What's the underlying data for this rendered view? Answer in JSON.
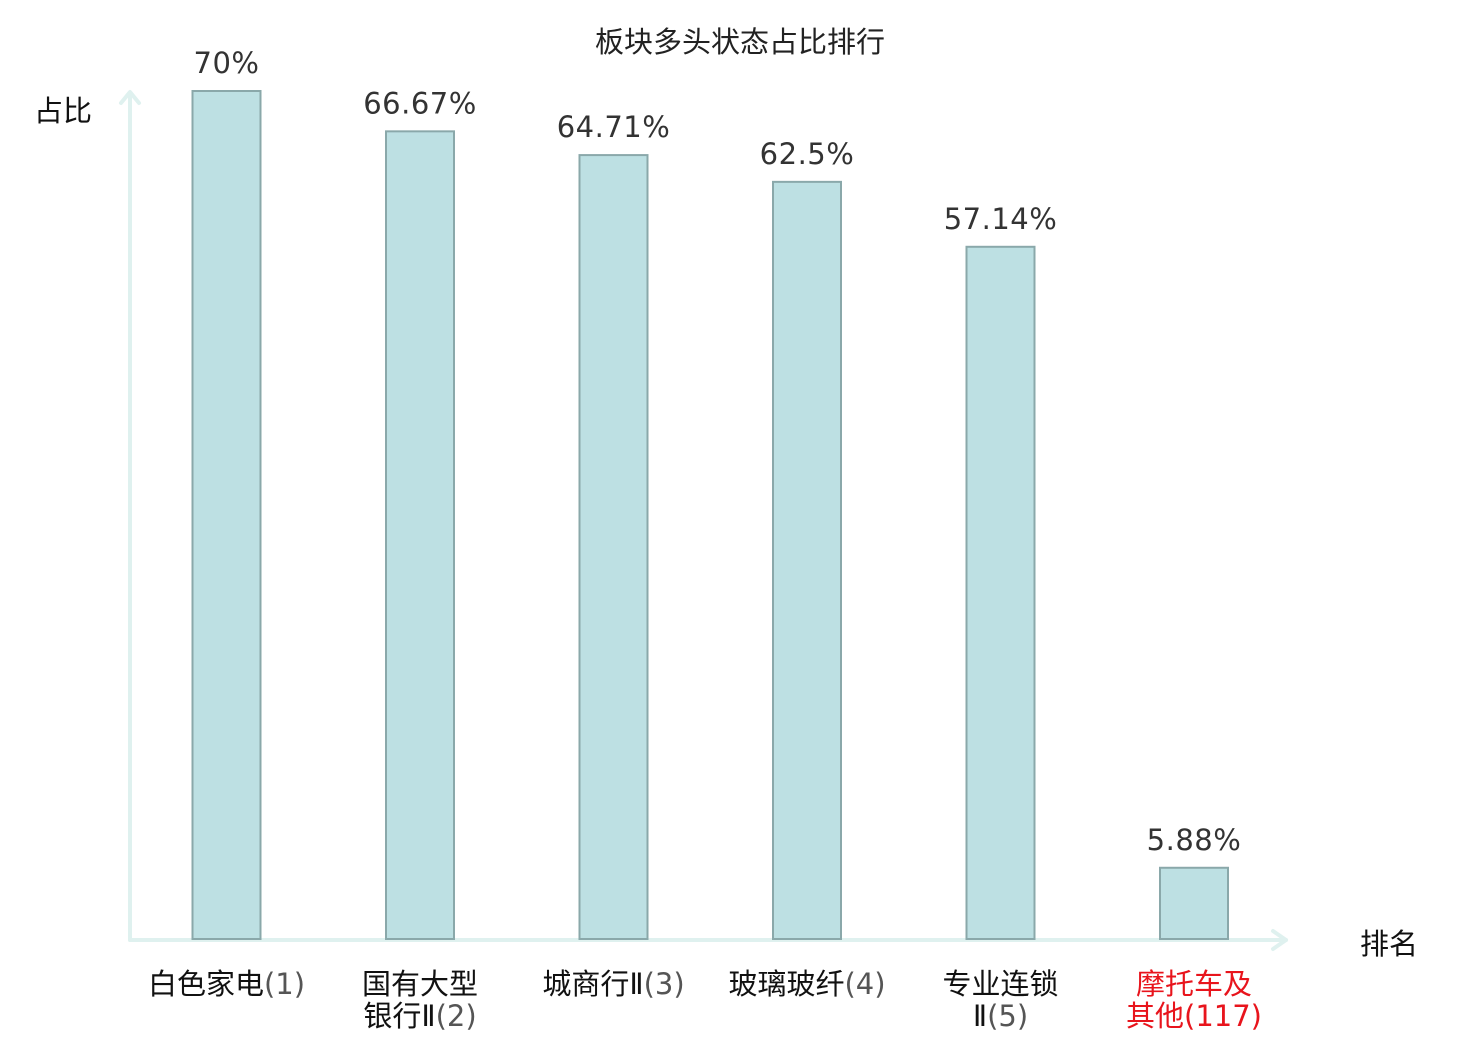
{
  "chart_data": {
    "type": "bar",
    "title": "板块多头状态占比排行",
    "ylabel": "占比",
    "xlabel": "排名",
    "ylim": [
      0,
      70
    ],
    "grid": false,
    "legend": "none",
    "categories": [
      {
        "lines": [
          {
            "name": "白色家电",
            "rank": "(1)"
          }
        ],
        "highlight": false
      },
      {
        "lines": [
          {
            "name": "国有大型",
            "rank": ""
          },
          {
            "name": "银行Ⅱ",
            "rank": "(2)"
          }
        ],
        "highlight": false
      },
      {
        "lines": [
          {
            "name": "城商行Ⅱ",
            "rank": "(3)"
          }
        ],
        "highlight": false
      },
      {
        "lines": [
          {
            "name": "玻璃玻纤",
            "rank": "(4)"
          }
        ],
        "highlight": false
      },
      {
        "lines": [
          {
            "name": "专业连锁",
            "rank": ""
          },
          {
            "name": "Ⅱ",
            "rank": "(5)"
          }
        ],
        "highlight": false
      },
      {
        "lines": [
          {
            "name": "摩托车及",
            "rank": ""
          },
          {
            "name": "其他",
            "rank": "(117)"
          }
        ],
        "highlight": true
      }
    ],
    "values": [
      70,
      66.67,
      64.71,
      62.5,
      57.14,
      5.88
    ],
    "value_labels": [
      "70%",
      "66.67%",
      "64.71%",
      "62.5%",
      "57.14%",
      "5.88%"
    ],
    "colors": {
      "bar_fill": "#bde0e3",
      "bar_stroke": "#8aa8aa",
      "axis": "#dff1ef",
      "highlight_text": "#e8141c"
    }
  }
}
